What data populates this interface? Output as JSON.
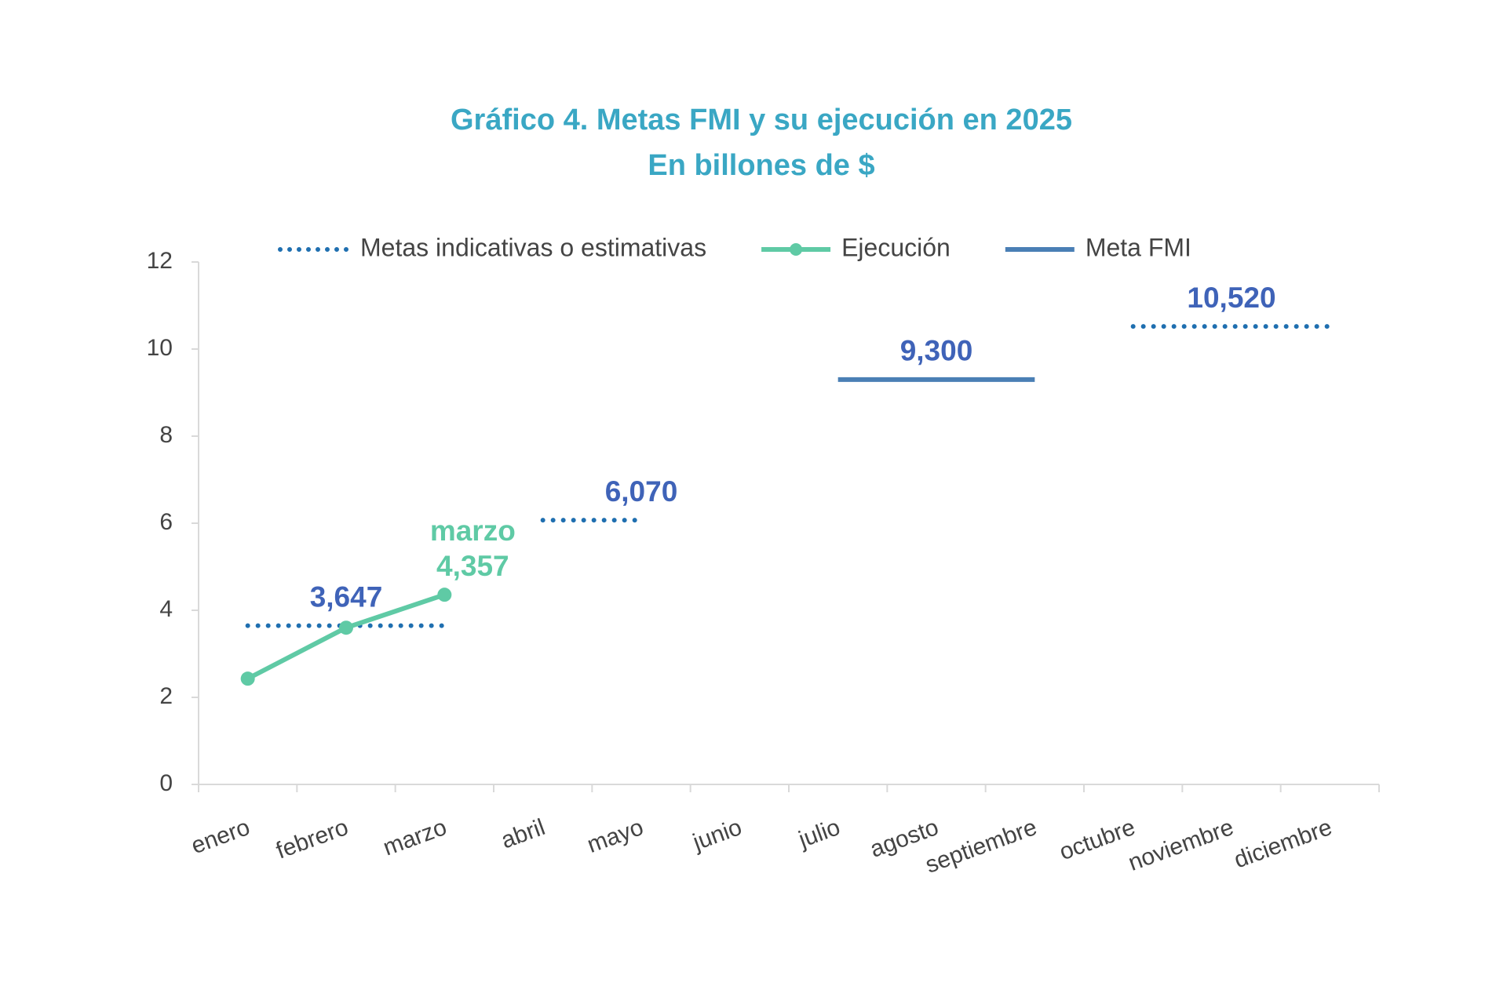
{
  "chart_data": {
    "type": "line",
    "title": "Gráfico 4. Metas FMI y su ejecución en 2025",
    "subtitle": "En billones de $",
    "categories": [
      "enero",
      "febrero",
      "marzo",
      "abril",
      "mayo",
      "junio",
      "julio",
      "agosto",
      "septiembre",
      "octubre",
      "noviembre",
      "diciembre"
    ],
    "ylim": [
      0,
      12
    ],
    "yticks": [
      0,
      2,
      4,
      6,
      8,
      10,
      12
    ],
    "legend": "top",
    "series": [
      {
        "name": "Metas indicativas o estimativas",
        "color": "#1f6fb0",
        "style": "dotted",
        "label_color": "#3f63b8",
        "values": [
          3.647,
          3.647,
          3.647,
          6.07,
          6.07,
          null,
          null,
          null,
          null,
          10.52,
          10.52,
          10.52
        ],
        "value_labels": [
          null,
          "3,647",
          null,
          null,
          "6,070",
          null,
          null,
          null,
          null,
          null,
          "10,520",
          null
        ]
      },
      {
        "name": "Ejecución",
        "color": "#5fcaa5",
        "style": "solid",
        "marker": true,
        "label_color": "#5fcaa5",
        "values": [
          2.43,
          3.6,
          4.357,
          null,
          null,
          null,
          null,
          null,
          null,
          null,
          null,
          null
        ],
        "value_labels": [
          null,
          null,
          "4,357",
          null,
          null,
          null,
          null,
          null,
          null,
          null,
          null,
          null
        ],
        "annotations": [
          null,
          null,
          "marzo",
          null,
          null,
          null,
          null,
          null,
          null,
          null,
          null,
          null
        ]
      },
      {
        "name": "Meta FMI",
        "color": "#4a7fb5",
        "style": "solid",
        "label_color": "#3f63b8",
        "values": [
          null,
          null,
          null,
          null,
          null,
          null,
          9.3,
          9.3,
          9.3,
          null,
          null,
          null
        ],
        "value_labels": [
          null,
          null,
          null,
          null,
          null,
          null,
          null,
          "9,300",
          null,
          null,
          null,
          null
        ]
      }
    ]
  }
}
